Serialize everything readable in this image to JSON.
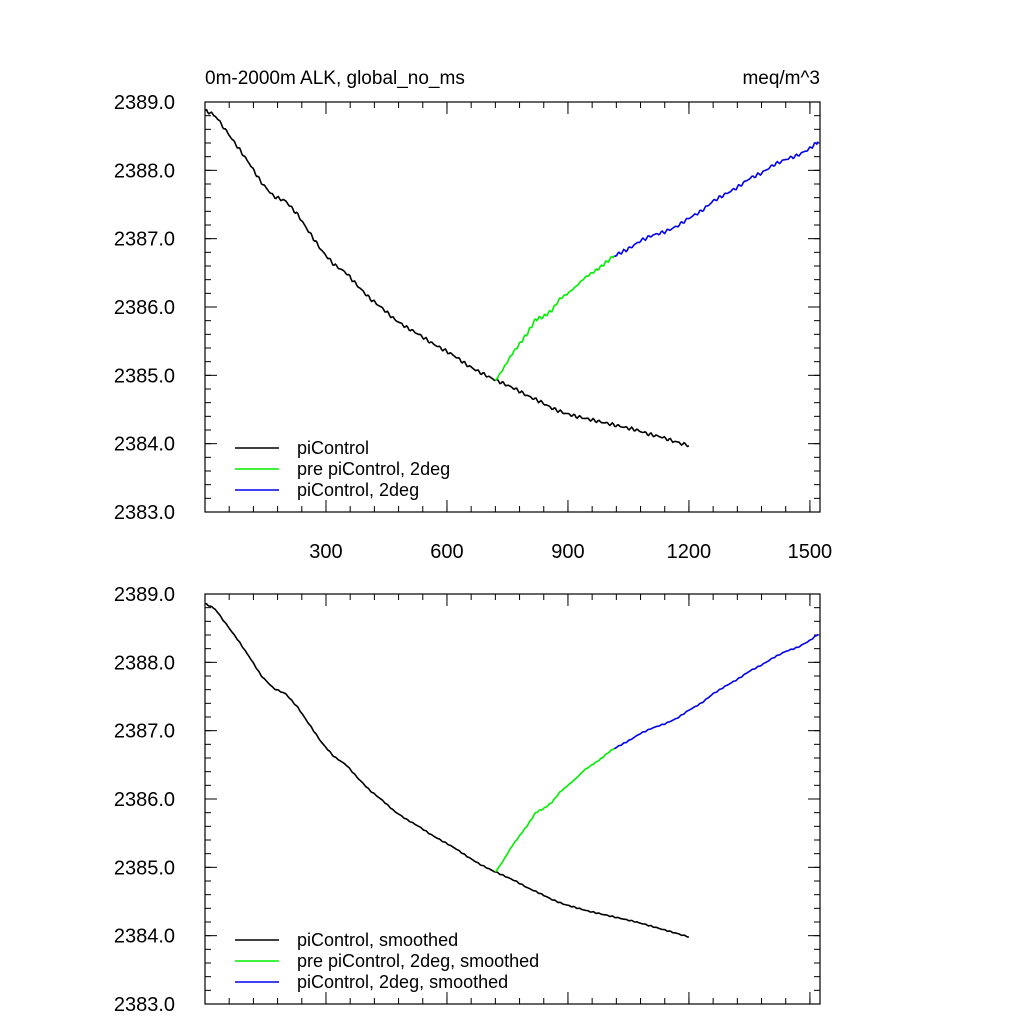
{
  "chart_data": [
    {
      "type": "line",
      "title_left": "0m-2000m ALK, global_no_ms",
      "title_right": "meq/m^3",
      "xlim": [
        0,
        1525
      ],
      "ylim": [
        2383.0,
        2389.0
      ],
      "xticks": [
        300,
        600,
        900,
        1200,
        1500
      ],
      "xtick_labels": [
        "300",
        "600",
        "900",
        "1200",
        "1500"
      ],
      "yticks": [
        2383.0,
        2384.0,
        2385.0,
        2386.0,
        2387.0,
        2388.0,
        2389.0
      ],
      "ytick_labels": [
        "2383.0",
        "2384.0",
        "2385.0",
        "2386.0",
        "2387.0",
        "2388.0",
        "2389.0"
      ],
      "legend_position": "bottom-left",
      "series": [
        {
          "name": "piControl",
          "color": "#000000",
          "x": [
            1,
            25,
            50,
            80,
            110,
            140,
            170,
            200,
            230,
            260,
            290,
            320,
            350,
            380,
            410,
            440,
            470,
            500,
            530,
            560,
            590,
            620,
            650,
            680,
            710,
            740,
            770,
            800,
            830,
            860,
            890,
            920,
            950,
            980,
            1010,
            1040,
            1070,
            1100,
            1130,
            1160,
            1200
          ],
          "y": [
            2388.88,
            2388.8,
            2388.6,
            2388.35,
            2388.1,
            2387.82,
            2387.62,
            2387.55,
            2387.35,
            2387.08,
            2386.82,
            2386.62,
            2386.5,
            2386.3,
            2386.12,
            2385.98,
            2385.82,
            2385.7,
            2385.6,
            2385.48,
            2385.38,
            2385.28,
            2385.15,
            2385.05,
            2384.96,
            2384.88,
            2384.8,
            2384.7,
            2384.62,
            2384.52,
            2384.45,
            2384.4,
            2384.36,
            2384.32,
            2384.28,
            2384.24,
            2384.2,
            2384.14,
            2384.1,
            2384.04,
            2383.97
          ]
        },
        {
          "name": "pre piControl, 2deg",
          "color": "#00ee00",
          "x": [
            720,
            740,
            760,
            780,
            800,
            820,
            840,
            860,
            880,
            900,
            920,
            940,
            960,
            980,
            1000,
            1015
          ],
          "y": [
            2384.92,
            2385.1,
            2385.3,
            2385.46,
            2385.62,
            2385.82,
            2385.86,
            2385.95,
            2386.12,
            2386.2,
            2386.3,
            2386.42,
            2386.5,
            2386.58,
            2386.68,
            2386.75
          ]
        },
        {
          "name": "piControl, 2deg",
          "color": "#0000ee",
          "x": [
            1015,
            1050,
            1080,
            1110,
            1140,
            1170,
            1200,
            1230,
            1260,
            1290,
            1320,
            1350,
            1380,
            1410,
            1440,
            1470,
            1500,
            1520
          ],
          "y": [
            2386.75,
            2386.85,
            2386.97,
            2387.05,
            2387.1,
            2387.18,
            2387.3,
            2387.4,
            2387.55,
            2387.65,
            2387.75,
            2387.88,
            2387.96,
            2388.08,
            2388.16,
            2388.22,
            2388.32,
            2388.42
          ]
        }
      ]
    },
    {
      "type": "line",
      "xlim": [
        0,
        1525
      ],
      "ylim": [
        2383.0,
        2389.0
      ],
      "xticks": [
        300,
        600,
        900,
        1200,
        1500
      ],
      "yticks": [
        2383.0,
        2384.0,
        2385.0,
        2386.0,
        2387.0,
        2388.0,
        2389.0
      ],
      "ytick_labels": [
        "2383.0",
        "2384.0",
        "2385.0",
        "2386.0",
        "2387.0",
        "2388.0",
        "2389.0"
      ],
      "legend_position": "bottom-left",
      "series": [
        {
          "name": "piControl, smoothed",
          "color": "#000000",
          "x": [
            1,
            25,
            50,
            80,
            110,
            140,
            170,
            200,
            230,
            260,
            290,
            320,
            350,
            380,
            410,
            440,
            470,
            500,
            530,
            560,
            590,
            620,
            650,
            680,
            710,
            740,
            770,
            800,
            830,
            860,
            890,
            920,
            950,
            980,
            1010,
            1040,
            1070,
            1100,
            1130,
            1160,
            1200
          ],
          "y": [
            2388.86,
            2388.78,
            2388.58,
            2388.34,
            2388.08,
            2387.8,
            2387.62,
            2387.54,
            2387.34,
            2387.08,
            2386.82,
            2386.62,
            2386.5,
            2386.3,
            2386.12,
            2385.98,
            2385.82,
            2385.7,
            2385.6,
            2385.48,
            2385.38,
            2385.28,
            2385.16,
            2385.05,
            2384.96,
            2384.88,
            2384.8,
            2384.7,
            2384.62,
            2384.53,
            2384.46,
            2384.41,
            2384.36,
            2384.32,
            2384.28,
            2384.24,
            2384.2,
            2384.15,
            2384.1,
            2384.05,
            2383.98
          ]
        },
        {
          "name": "pre piControl, 2deg, smoothed",
          "color": "#00ee00",
          "x": [
            720,
            740,
            760,
            780,
            800,
            820,
            840,
            860,
            880,
            900,
            920,
            940,
            960,
            980,
            1000,
            1015
          ],
          "y": [
            2384.93,
            2385.1,
            2385.3,
            2385.46,
            2385.62,
            2385.8,
            2385.86,
            2385.95,
            2386.1,
            2386.2,
            2386.3,
            2386.42,
            2386.5,
            2386.58,
            2386.68,
            2386.74
          ]
        },
        {
          "name": "piControl, 2deg, smoothed",
          "color": "#0000ee",
          "x": [
            1015,
            1050,
            1080,
            1110,
            1140,
            1170,
            1200,
            1230,
            1260,
            1290,
            1320,
            1350,
            1380,
            1410,
            1440,
            1470,
            1500,
            1520
          ],
          "y": [
            2386.74,
            2386.85,
            2386.96,
            2387.04,
            2387.1,
            2387.18,
            2387.3,
            2387.4,
            2387.54,
            2387.65,
            2387.75,
            2387.87,
            2387.96,
            2388.07,
            2388.16,
            2388.22,
            2388.32,
            2388.41
          ]
        }
      ]
    }
  ]
}
